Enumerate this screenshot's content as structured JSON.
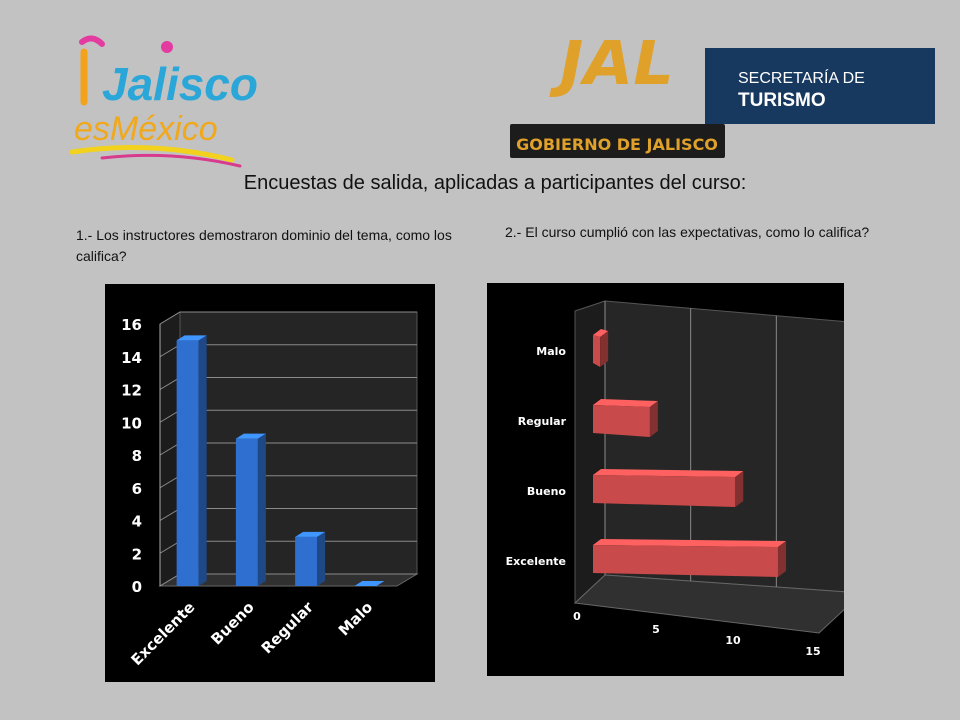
{
  "logos": {
    "left_text": "Jalisco",
    "left_sub": "esMéxico",
    "right_mark": "JAL",
    "right_line1": "SECRETARÍA DE",
    "right_line2": "TURISMO",
    "right_sub": "GOBIERNO DE JALISCO"
  },
  "title": "Encuestas de salida, aplicadas  a  participantes del curso:",
  "questions": {
    "q1": "1.- Los instructores demostraron dominio del tema, como los califica?",
    "q2": "2.- El curso cumplió con las expectativas, como lo califica?"
  },
  "colors": {
    "bar_blue": "#2f6fd0",
    "bar_red": "#c94a4a",
    "background": "#c2c2c2"
  },
  "chart_data": [
    {
      "type": "bar",
      "orientation": "vertical",
      "categories": [
        "Excelente",
        "Bueno",
        "Regular",
        "Malo"
      ],
      "values": [
        15,
        9,
        3,
        0
      ],
      "yticks": [
        "0",
        "2",
        "4",
        "6",
        "8",
        "10",
        "12",
        "14",
        "16"
      ],
      "ylim": [
        0,
        16
      ],
      "grid": true
    },
    {
      "type": "bar",
      "orientation": "horizontal",
      "categories": [
        "Excelente",
        "Bueno",
        "Regular",
        "Malo"
      ],
      "values": [
        13,
        10,
        4,
        0.5
      ],
      "xticks": [
        "0",
        "5",
        "10",
        "15"
      ],
      "xlim": [
        0,
        15
      ],
      "grid": true
    }
  ]
}
